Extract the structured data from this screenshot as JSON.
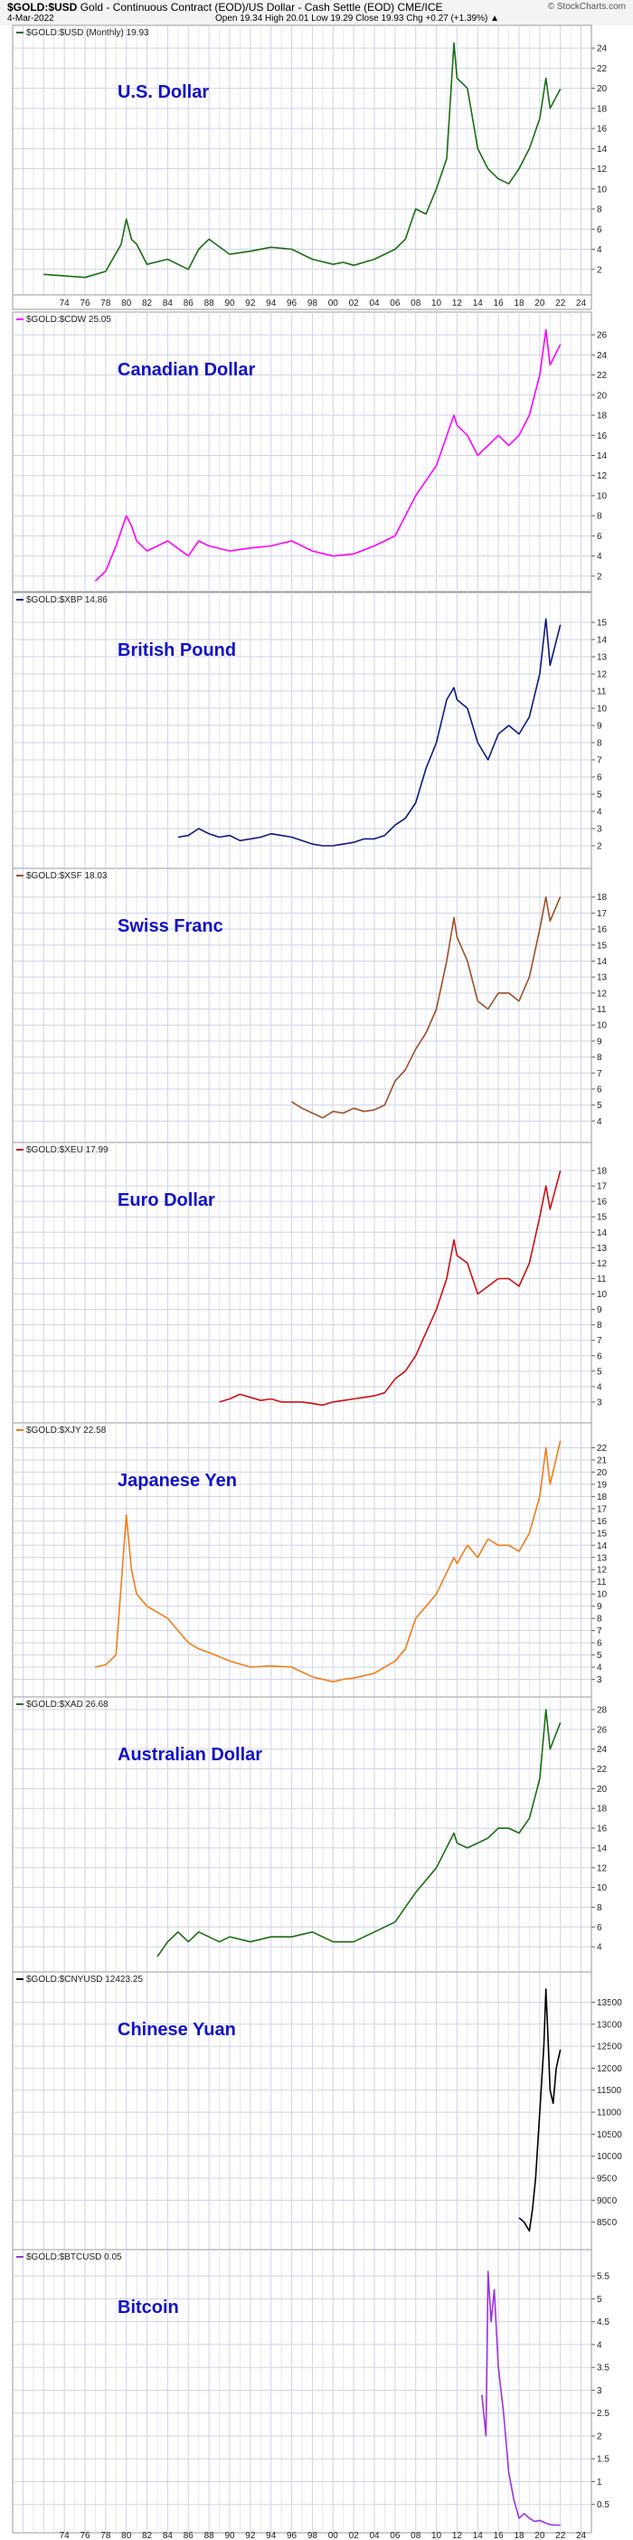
{
  "header": {
    "symbol": "$GOLD:$USD",
    "description": "Gold - Continuous Contract (EOD)/US Dollar - Cash Settle (EOD)",
    "exchange": "CME/ICE",
    "date": "4-Mar-2022",
    "ohlc": "Open 19.34  High 20.01  Low 19.29  Close 19.93  Chg +0.27 (+1.39%) ▲",
    "credit": "© StockCharts.com"
  },
  "chart_data": [
    {
      "type": "line",
      "panel_label": "$GOLD:$USD (Monthly) 19.93",
      "title": "U.S. Dollar",
      "color": "#1a6e10",
      "ylim": [
        0,
        25
      ],
      "yticks": [
        2,
        4,
        6,
        8,
        10,
        12,
        14,
        16,
        18,
        20,
        22,
        24
      ],
      "x": [
        1972,
        1976,
        1978,
        1979.5,
        1980,
        1980.5,
        1981,
        1982,
        1984,
        1986,
        1987,
        1988,
        1990,
        1992,
        1994,
        1996,
        1998,
        2000,
        2001,
        2002,
        2004,
        2006,
        2007,
        2008,
        2009,
        2010,
        2011,
        2011.7,
        2012,
        2013,
        2014,
        2015,
        2016,
        2017,
        2018,
        2019,
        2020,
        2020.6,
        2021,
        2022
      ],
      "y": [
        1.5,
        1.2,
        1.8,
        4.5,
        7,
        5,
        4.5,
        2.5,
        3,
        2,
        4,
        5,
        3.5,
        3.8,
        4.2,
        4,
        3,
        2.5,
        2.7,
        2.4,
        3,
        4,
        5,
        8,
        7.5,
        10,
        13,
        24.5,
        21,
        20,
        14,
        12,
        11,
        10.5,
        12,
        14,
        17,
        21,
        18,
        19.93
      ]
    },
    {
      "type": "line",
      "panel_label": "$GOLD:$CDW 25.05",
      "title": "Canadian Dollar",
      "color": "#ff00ff",
      "ylim": [
        1,
        27
      ],
      "yticks": [
        2,
        4,
        6,
        8,
        10,
        12,
        14,
        16,
        18,
        20,
        22,
        24,
        26
      ],
      "x": [
        1977,
        1978,
        1979,
        1980,
        1980.5,
        1981,
        1982,
        1984,
        1986,
        1987,
        1988,
        1990,
        1992,
        1994,
        1996,
        1998,
        2000,
        2002,
        2004,
        2006,
        2008,
        2010,
        2011.7,
        2012,
        2013,
        2014,
        2015,
        2016,
        2017,
        2018,
        2019,
        2020,
        2020.6,
        2021,
        2022
      ],
      "y": [
        1.5,
        2.5,
        5,
        8,
        7,
        5.5,
        4.5,
        5.5,
        4,
        5.5,
        5,
        4.5,
        4.8,
        5,
        5.5,
        4.5,
        4,
        4.2,
        5,
        6,
        10,
        13,
        18,
        17,
        16,
        14,
        15,
        16,
        15,
        16,
        18,
        22,
        26.5,
        23,
        25.05
      ]
    },
    {
      "type": "line",
      "panel_label": "$GOLD:$XBP 14.86",
      "title": "British Pound",
      "color": "#0f1880",
      "ylim": [
        1,
        16
      ],
      "yticks": [
        2,
        3,
        4,
        5,
        6,
        7,
        8,
        9,
        10,
        11,
        12,
        13,
        14,
        15
      ],
      "x": [
        1985,
        1986,
        1987,
        1988,
        1989,
        1990,
        1991,
        1992,
        1993,
        1994,
        1995,
        1996,
        1997,
        1998,
        1999,
        2000,
        2001,
        2002,
        2003,
        2004,
        2005,
        2006,
        2007,
        2008,
        2009,
        2010,
        2011,
        2011.7,
        2012,
        2013,
        2014,
        2015,
        2016,
        2017,
        2018,
        2019,
        2020,
        2020.6,
        2021,
        2022
      ],
      "y": [
        2.5,
        2.6,
        3.0,
        2.7,
        2.5,
        2.6,
        2.3,
        2.4,
        2.5,
        2.7,
        2.6,
        2.5,
        2.3,
        2.1,
        2.0,
        2.0,
        2.1,
        2.2,
        2.4,
        2.4,
        2.6,
        3.2,
        3.6,
        4.5,
        6.5,
        8,
        10.5,
        11.2,
        10.5,
        10,
        8,
        7,
        8.5,
        9,
        8.5,
        9.5,
        12,
        15.2,
        12.5,
        14.86
      ]
    },
    {
      "type": "line",
      "panel_label": "$GOLD:$XSF 18.03",
      "title": "Swiss Franc",
      "color": "#9e4f25",
      "ylim": [
        3,
        19
      ],
      "yticks": [
        4,
        5,
        6,
        7,
        8,
        9,
        10,
        11,
        12,
        13,
        14,
        15,
        16,
        17,
        18
      ],
      "x": [
        1996,
        1997,
        1998,
        1999,
        2000,
        2001,
        2002,
        2003,
        2004,
        2005,
        2006,
        2007,
        2008,
        2009,
        2010,
        2011,
        2011.7,
        2012,
        2013,
        2014,
        2015,
        2016,
        2017,
        2018,
        2019,
        2020,
        2020.6,
        2021,
        2022
      ],
      "y": [
        5.2,
        4.8,
        4.5,
        4.2,
        4.6,
        4.5,
        4.8,
        4.6,
        4.7,
        5.0,
        6.5,
        7.2,
        8.5,
        9.5,
        11,
        14,
        16.7,
        15.5,
        14,
        11.5,
        11,
        12,
        12,
        11.5,
        13,
        16,
        18,
        16.5,
        18.03
      ]
    },
    {
      "type": "line",
      "panel_label": "$GOLD:$XEU 17.99",
      "title": "Euro Dollar",
      "color": "#cc1010",
      "ylim": [
        2,
        19
      ],
      "yticks": [
        3,
        4,
        5,
        6,
        7,
        8,
        9,
        10,
        11,
        12,
        13,
        14,
        15,
        16,
        17,
        18
      ],
      "x": [
        1989,
        1990,
        1991,
        1992,
        1993,
        1994,
        1995,
        1996,
        1997,
        1998,
        1999,
        2000,
        2001,
        2002,
        2003,
        2004,
        2005,
        2006,
        2007,
        2008,
        2009,
        2010,
        2011,
        2011.7,
        2012,
        2013,
        2014,
        2015,
        2016,
        2017,
        2018,
        2019,
        2020,
        2020.6,
        2021,
        2022
      ],
      "y": [
        3.0,
        3.2,
        3.5,
        3.3,
        3.1,
        3.2,
        3.0,
        3.0,
        3.0,
        2.9,
        2.8,
        3.0,
        3.1,
        3.2,
        3.3,
        3.4,
        3.6,
        4.5,
        5.0,
        6.0,
        7.5,
        9,
        11,
        13.5,
        12.5,
        12,
        10,
        10.5,
        11,
        11,
        10.5,
        12,
        15,
        17,
        15.5,
        17.99
      ]
    },
    {
      "type": "line",
      "panel_label": "$GOLD:$XJY 22.58",
      "title": "Japanese Yen",
      "color": "#f07e18",
      "ylim": [
        2,
        23
      ],
      "yticks": [
        3,
        4,
        5,
        6,
        7,
        8,
        9,
        10,
        11,
        12,
        13,
        14,
        15,
        16,
        17,
        18,
        19,
        20,
        21,
        22
      ],
      "x": [
        1977,
        1978,
        1979,
        1980,
        1980.5,
        1981,
        1982,
        1984,
        1986,
        1987,
        1988,
        1990,
        1992,
        1994,
        1996,
        1998,
        2000,
        2001,
        2002,
        2004,
        2006,
        2007,
        2008,
        2010,
        2011.7,
        2012,
        2013,
        2014,
        2015,
        2016,
        2017,
        2018,
        2019,
        2020,
        2020.6,
        2021,
        2022
      ],
      "y": [
        4,
        4.2,
        5,
        16.5,
        12,
        10,
        9,
        8,
        6,
        5.5,
        5.2,
        4.5,
        4,
        4.1,
        4,
        3.2,
        2.8,
        3,
        3.1,
        3.5,
        4.5,
        5.5,
        8,
        10,
        13,
        12.5,
        14,
        13,
        14.5,
        14,
        14,
        13.5,
        15,
        18,
        22,
        19,
        22.58
      ]
    },
    {
      "type": "line",
      "panel_label": "$GOLD:$XAD 26.68",
      "title": "Australian Dollar",
      "color": "#1a6e10",
      "ylim": [
        2,
        28
      ],
      "yticks": [
        4,
        6,
        8,
        10,
        12,
        14,
        16,
        18,
        20,
        22,
        24,
        26,
        28
      ],
      "x": [
        1983,
        1984,
        1985,
        1986,
        1987,
        1988,
        1989,
        1990,
        1992,
        1994,
        1996,
        1998,
        2000,
        2002,
        2004,
        2006,
        2008,
        2010,
        2011.7,
        2012,
        2013,
        2014,
        2015,
        2016,
        2017,
        2018,
        2019,
        2020,
        2020.6,
        2021,
        2022
      ],
      "y": [
        3,
        4.5,
        5.5,
        4.5,
        5.5,
        5,
        4.5,
        5,
        4.5,
        5,
        5,
        5.5,
        4.5,
        4.5,
        5.5,
        6.5,
        9.5,
        12,
        15.5,
        14.5,
        14,
        14.5,
        15,
        16,
        16,
        15.5,
        17,
        21,
        28,
        24,
        26.68
      ]
    },
    {
      "type": "line",
      "panel_label": "$GOLD:$CNYUSD 12423.25",
      "title": "Chinese Yuan",
      "color": "#000000",
      "ylim": [
        8000,
        13900
      ],
      "yticks": [
        8500,
        9000,
        9500,
        10000,
        10500,
        11000,
        11500,
        12000,
        12500,
        13000,
        13500
      ],
      "x": [
        2018,
        2018.5,
        2019,
        2019.3,
        2019.6,
        2020,
        2020.4,
        2020.6,
        2020.8,
        2021,
        2021.3,
        2021.6,
        2022
      ],
      "y": [
        8600,
        8500,
        8300,
        8800,
        9500,
        11000,
        12500,
        13800,
        12700,
        11500,
        11200,
        12000,
        12423.25
      ]
    },
    {
      "type": "line",
      "panel_label": "$GOLD:$BTCUSD 0.05",
      "title": "Bitcoin",
      "color": "#9a33e0",
      "ylim": [
        0,
        5.8
      ],
      "yticks": [
        0.5,
        1,
        1.5,
        2,
        2.5,
        3,
        3.5,
        4,
        4.5,
        5,
        5.5
      ],
      "x": [
        2014.4,
        2014.8,
        2015,
        2015.3,
        2015.6,
        2016,
        2016.5,
        2017,
        2017.5,
        2018,
        2018.5,
        2019,
        2019.5,
        2020,
        2020.5,
        2021,
        2021.5,
        2022
      ],
      "y": [
        2.9,
        2.0,
        5.6,
        4.5,
        5.2,
        3.5,
        2.5,
        1.2,
        0.6,
        0.2,
        0.3,
        0.2,
        0.13,
        0.15,
        0.1,
        0.06,
        0.05,
        0.05
      ]
    }
  ],
  "xaxis": {
    "labels": [
      "74",
      "76",
      "78",
      "80",
      "82",
      "84",
      "86",
      "88",
      "90",
      "92",
      "94",
      "96",
      "98",
      "00",
      "02",
      "04",
      "06",
      "08",
      "10",
      "12",
      "14",
      "16",
      "18",
      "20",
      "22",
      "24"
    ],
    "years": [
      1974,
      1976,
      1978,
      1980,
      1982,
      1984,
      1986,
      1988,
      1990,
      1992,
      1994,
      1996,
      1998,
      2000,
      2002,
      2004,
      2006,
      2008,
      2010,
      2012,
      2014,
      2016,
      2018,
      2020,
      2022,
      2024
    ]
  }
}
